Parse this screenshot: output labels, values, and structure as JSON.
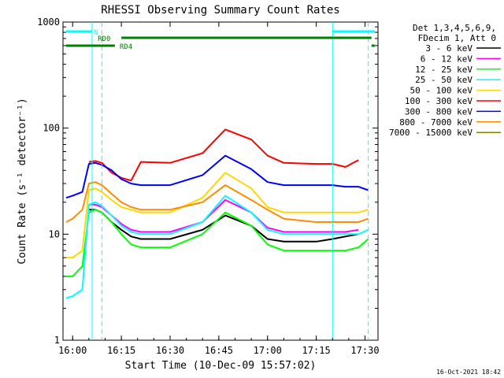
{
  "chart_data": {
    "type": "line",
    "title": "RHESSI Observing Summary Count Rates",
    "xlabel": "Start Time (10-Dec-09 15:57:02)",
    "ylabel": "Count Rate (s⁻¹ detector⁻¹)",
    "yscale": "log",
    "ylim": [
      1,
      1000
    ],
    "xlim": [
      "15:57:02",
      "17:34:00"
    ],
    "x_ticks": [
      "16:00",
      "16:15",
      "16:30",
      "16:45",
      "17:00",
      "17:15",
      "17:30"
    ],
    "y_ticks": [
      "1",
      "10",
      "100",
      "1000"
    ],
    "legend_header": [
      "Det 1,3,4,5,6,9,",
      "FDecim 1, Att 0"
    ],
    "legend_position": "right",
    "series": [
      {
        "name": "3 - 6 keV",
        "color": "#000000",
        "x": [
          "16:05",
          "16:07",
          "16:09",
          "16:12",
          "16:15",
          "16:18",
          "16:21",
          "16:30",
          "16:40",
          "16:47",
          "16:55",
          "17:00",
          "17:05",
          "17:15",
          "17:20",
          "17:24",
          "17:28"
        ],
        "y": [
          17,
          17,
          16,
          13,
          11,
          9.5,
          9,
          9,
          11,
          15,
          12,
          9,
          8.5,
          8.5,
          9,
          9.5,
          10
        ]
      },
      {
        "name": "6 - 12 keV",
        "color": "#ff00ff",
        "x": [
          "16:05",
          "16:07",
          "16:09",
          "16:12",
          "16:15",
          "16:18",
          "16:21",
          "16:30",
          "16:40",
          "16:47",
          "16:55",
          "17:00",
          "17:05",
          "17:15",
          "17:20",
          "17:24",
          "17:28"
        ],
        "y": [
          19,
          19,
          18,
          15,
          12.5,
          11,
          10.5,
          10.5,
          13,
          21,
          16,
          11.5,
          10.5,
          10.5,
          10.5,
          10.5,
          11
        ]
      },
      {
        "name": "12 - 25 keV",
        "color": "#00ff00",
        "x": [
          "15:58",
          "16:00",
          "16:03",
          "16:05",
          "16:07",
          "16:09",
          "16:12",
          "16:15",
          "16:18",
          "16:21",
          "16:30",
          "16:40",
          "16:47",
          "16:55",
          "17:00",
          "17:05",
          "17:15",
          "17:20",
          "17:24",
          "17:28",
          "17:31"
        ],
        "y": [
          4,
          4,
          5,
          16,
          17,
          16,
          13,
          10,
          8,
          7.5,
          7.5,
          10,
          16,
          12,
          8,
          7,
          7,
          7,
          7,
          7.5,
          9
        ]
      },
      {
        "name": "25 - 50 keV",
        "color": "#00ffff",
        "x": [
          "15:58",
          "16:00",
          "16:03",
          "16:05",
          "16:07",
          "16:09",
          "16:12",
          "16:15",
          "16:18",
          "16:21",
          "16:30",
          "16:40",
          "16:47",
          "16:55",
          "17:00",
          "17:05",
          "17:15",
          "17:20",
          "17:24",
          "17:28",
          "17:31"
        ],
        "y": [
          2.5,
          2.6,
          3,
          19,
          20,
          18.5,
          15,
          12,
          10.5,
          10,
          10,
          13,
          23,
          16,
          11,
          10,
          10,
          10,
          10,
          10,
          11
        ]
      },
      {
        "name": "50 - 100 keV",
        "color": "#ffd700",
        "x": [
          "15:58",
          "16:00",
          "16:03",
          "16:05",
          "16:07",
          "16:09",
          "16:12",
          "16:15",
          "16:18",
          "16:21",
          "16:30",
          "16:40",
          "16:47",
          "16:55",
          "17:00",
          "17:05",
          "17:15",
          "17:20",
          "17:24",
          "17:28",
          "17:31"
        ],
        "y": [
          6,
          6,
          7,
          26,
          27,
          25,
          21,
          18,
          17,
          16,
          16,
          22,
          38,
          27,
          18,
          16,
          16,
          16,
          16,
          16,
          17
        ]
      },
      {
        "name": "100 - 300 keV",
        "color": "#ff0000",
        "x": [
          "16:05",
          "16:07",
          "16:09",
          "16:12",
          "16:15",
          "16:18",
          "16:21",
          "16:30",
          "16:40",
          "16:47",
          "16:55",
          "17:00",
          "17:05",
          "17:15",
          "17:20",
          "17:24",
          "17:28"
        ],
        "y": [
          48,
          49,
          47,
          38,
          34,
          32,
          48,
          47,
          58,
          97,
          78,
          55,
          47,
          46,
          46,
          43,
          50
        ]
      },
      {
        "name": "300 - 800 keV",
        "color": "#0000ff",
        "x": [
          "15:58",
          "16:00",
          "16:03",
          "16:05",
          "16:07",
          "16:09",
          "16:12",
          "16:15",
          "16:18",
          "16:21",
          "16:30",
          "16:40",
          "16:47",
          "16:55",
          "17:00",
          "17:05",
          "17:15",
          "17:20",
          "17:24",
          "17:28",
          "17:31"
        ],
        "y": [
          22,
          23,
          25,
          46,
          47,
          45,
          40,
          33,
          30,
          29,
          29,
          36,
          55,
          41,
          31,
          29,
          29,
          29,
          28,
          28,
          26
        ]
      },
      {
        "name": "800 - 7000 keV",
        "color": "#ff8c00",
        "x": [
          "15:58",
          "16:00",
          "16:03",
          "16:05",
          "16:07",
          "16:09",
          "16:12",
          "16:15",
          "16:18",
          "16:21",
          "16:30",
          "16:40",
          "16:47",
          "16:55",
          "17:00",
          "17:05",
          "17:15",
          "17:20",
          "17:24",
          "17:28",
          "17:31"
        ],
        "y": [
          13,
          14,
          17,
          30,
          31,
          29,
          24,
          20,
          18,
          17,
          17,
          20,
          29,
          21,
          17,
          14,
          13,
          13,
          13,
          13,
          14
        ]
      },
      {
        "name": "7000 - 15000 keV",
        "color": "#8b7d00",
        "x": [],
        "y": []
      }
    ],
    "annotations": [
      {
        "text": "N",
        "color": "#00ffff",
        "from": "15:58",
        "to": "16:06"
      },
      {
        "text": "N",
        "color": "#00ffff",
        "from": "17:20",
        "to": "17:33"
      },
      {
        "text": "RD0",
        "color": "#008000",
        "from": "16:15",
        "to": "17:32"
      },
      {
        "text": "RD4",
        "color": "#008000",
        "from": "15:58",
        "to": "16:13"
      },
      {
        "text": "RD4",
        "color": "#008000",
        "from": "17:32",
        "to": "17:33"
      }
    ],
    "vlines": [
      "16:06",
      "16:09",
      "17:20",
      "17:31"
    ],
    "vline_color": "#00ffff",
    "timestamp": "16-Oct-2021 18:42"
  }
}
